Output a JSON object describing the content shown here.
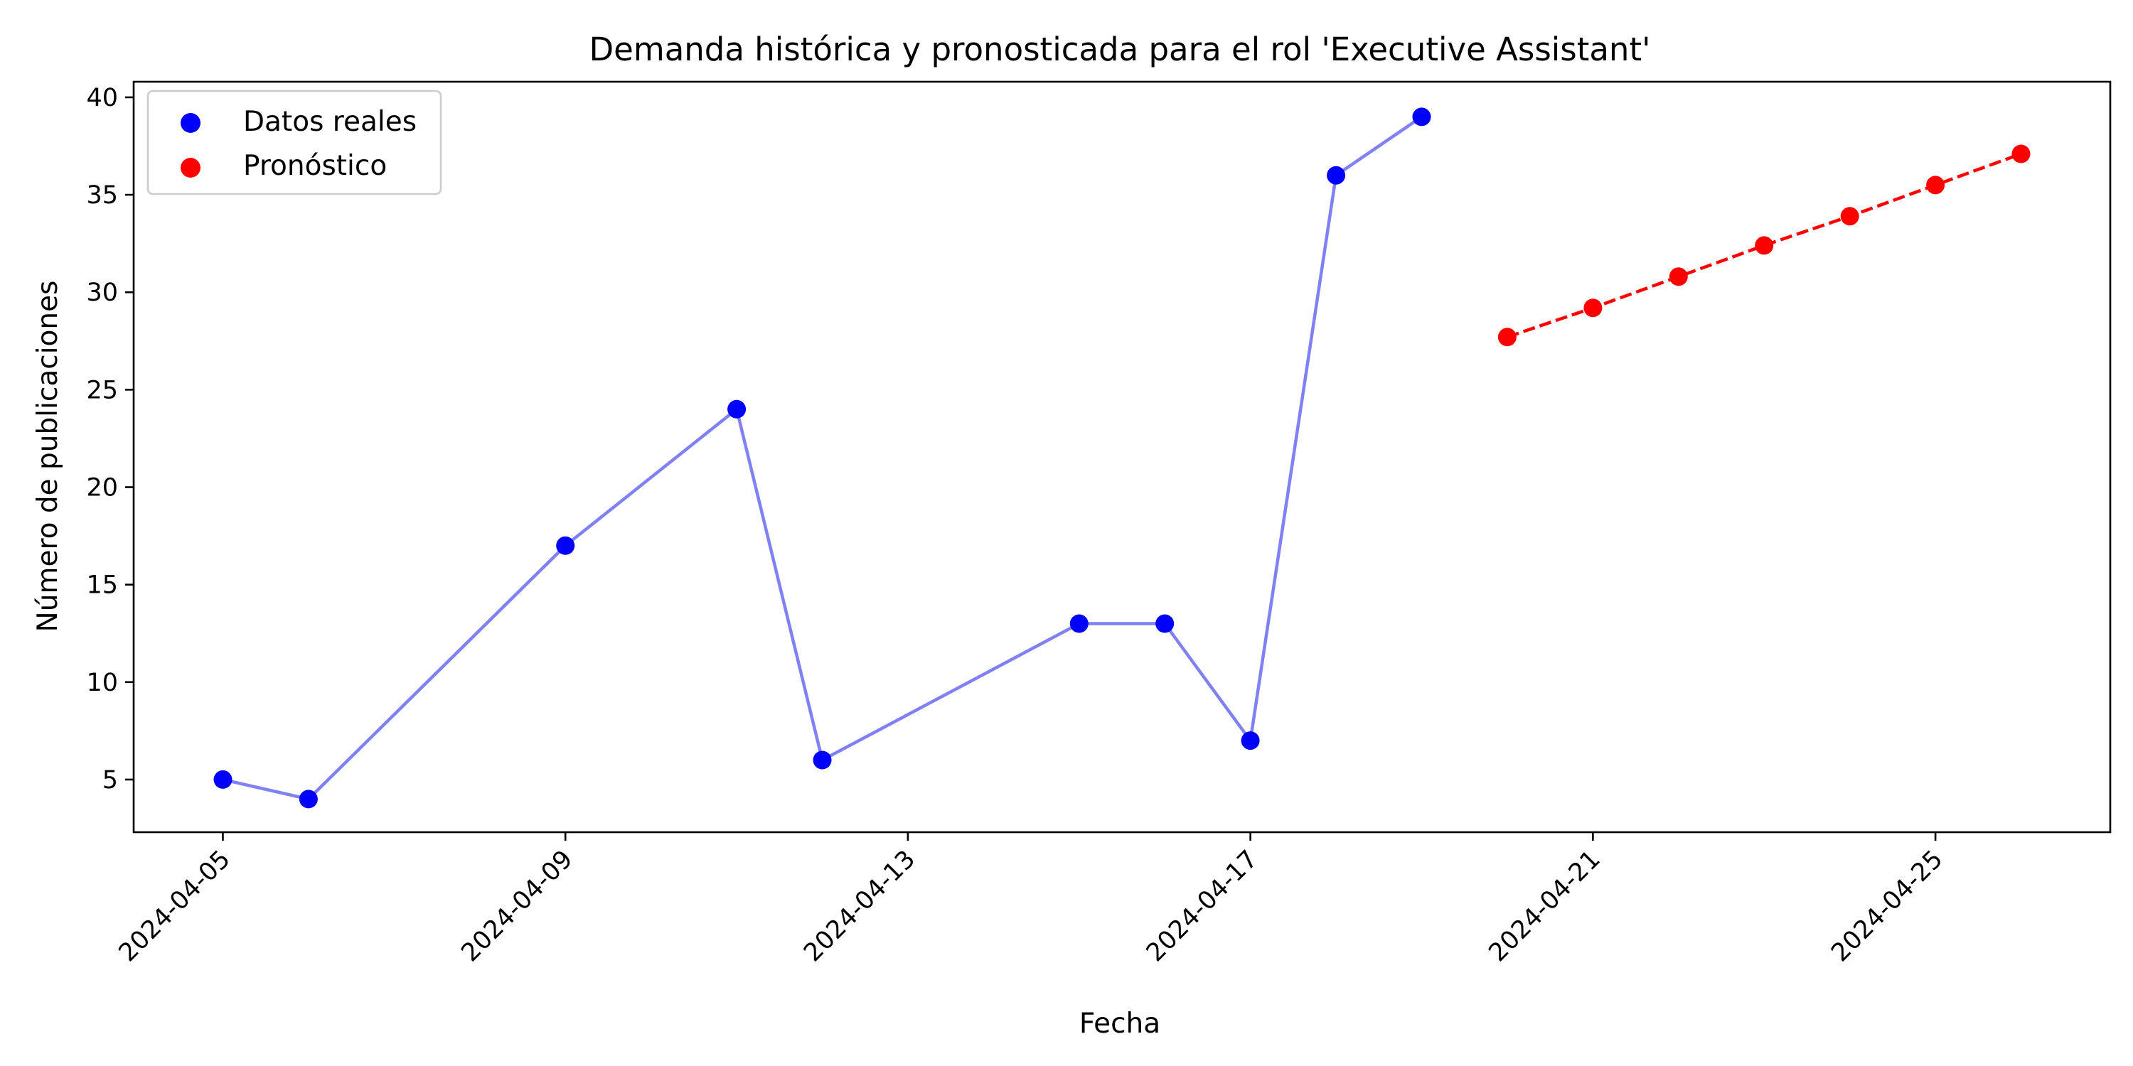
{
  "chart_data": {
    "type": "line",
    "title": "Demanda histórica y pronosticada para el rol 'Executive Assistant'",
    "xlabel": "Fecha",
    "ylabel": "Número de publicaciones",
    "x_axis_type": "date",
    "xlim": [
      "2024-04-03T23:00",
      "2024-04-27T01:00"
    ],
    "ylim": [
      2.3,
      40.8
    ],
    "x_ticks": [
      "2024-04-05",
      "2024-04-09",
      "2024-04-13",
      "2024-04-17",
      "2024-04-21",
      "2024-04-25"
    ],
    "y_ticks": [
      5,
      10,
      15,
      20,
      25,
      30,
      35,
      40
    ],
    "grid": false,
    "legend_position": "top-left",
    "series": [
      {
        "name": "Datos reales",
        "color": "#0000ff",
        "line_color": "#8080f7",
        "line_style": "solid",
        "marker": "circle",
        "points": [
          {
            "x": "2024-04-05",
            "y": 5
          },
          {
            "x": "2024-04-06",
            "y": 4
          },
          {
            "x": "2024-04-09",
            "y": 17
          },
          {
            "x": "2024-04-11",
            "y": 24
          },
          {
            "x": "2024-04-12",
            "y": 6
          },
          {
            "x": "2024-04-15",
            "y": 13
          },
          {
            "x": "2024-04-16",
            "y": 13
          },
          {
            "x": "2024-04-17",
            "y": 7
          },
          {
            "x": "2024-04-18",
            "y": 36
          },
          {
            "x": "2024-04-19",
            "y": 39
          }
        ]
      },
      {
        "name": "Pronóstico",
        "color": "#ff0000",
        "line_color": "#ff0000",
        "line_style": "dashed",
        "marker": "circle",
        "points": [
          {
            "x": "2024-04-20",
            "y": 27.7
          },
          {
            "x": "2024-04-21",
            "y": 29.2
          },
          {
            "x": "2024-04-22",
            "y": 30.8
          },
          {
            "x": "2024-04-23",
            "y": 32.4
          },
          {
            "x": "2024-04-24",
            "y": 33.9
          },
          {
            "x": "2024-04-25",
            "y": 35.5
          },
          {
            "x": "2024-04-26",
            "y": 37.1
          }
        ]
      }
    ]
  }
}
